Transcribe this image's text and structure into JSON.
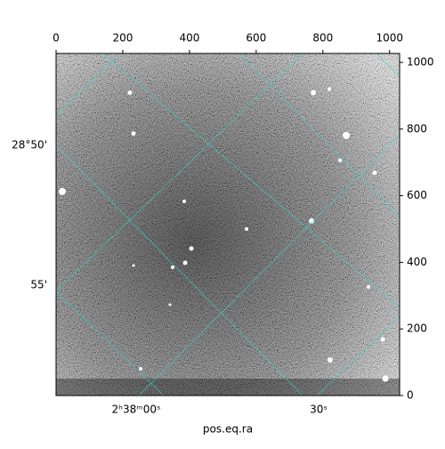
{
  "chart_data": {
    "type": "image",
    "xlabel": "pos.eq.ra",
    "xlim": [
      0,
      1030
    ],
    "xticks": [
      0,
      200,
      400,
      600,
      800,
      1000
    ],
    "ylim": [
      0,
      1027
    ],
    "yticks": [
      0,
      200,
      400,
      600,
      800,
      1000
    ],
    "wcs_x_labels": [
      "2ʰ38ᵐ00ˢ",
      "30ˢ"
    ],
    "wcs_y_labels": [
      "28°50'",
      "55'"
    ]
  }
}
